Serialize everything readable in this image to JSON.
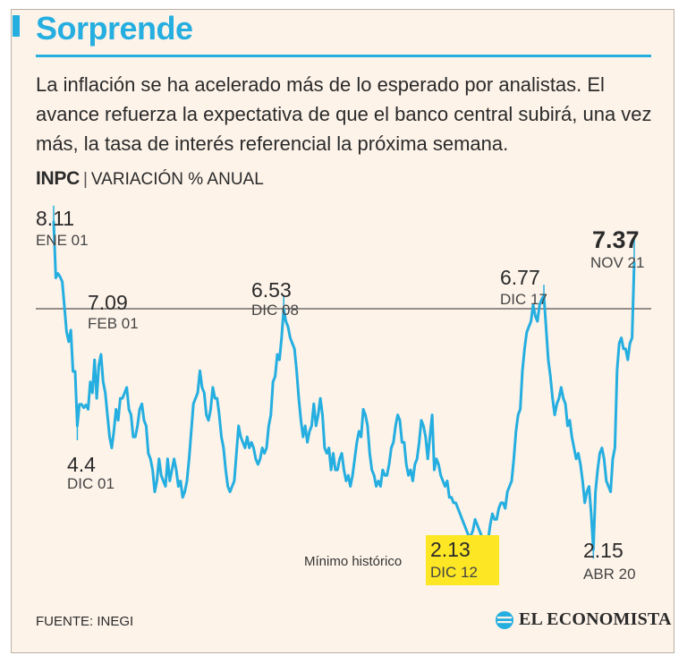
{
  "header": {
    "title": "Sorprende",
    "intro": "La inflación se ha acelerado más de lo esperado por analistas. El avance refuerza la expectativa de que el banco central subirá, una vez más, la tasa de interés referencial la próxima semana.",
    "subtitle_bold": "INPC",
    "subtitle_sep": "|",
    "subtitle_rest": "VARIACIÓN % ANUAL"
  },
  "chart_data": {
    "type": "line",
    "title": "INPC | VARIACIÓN % ANUAL",
    "xlabel": "",
    "ylabel": "",
    "ylim": [
      1.6,
      8.4
    ],
    "grid": false,
    "legend": "none",
    "reference_line": 6.53,
    "series": [
      {
        "name": "INPC variación % anual",
        "values": [
          8.11,
          7.09,
          7.17,
          7.11,
          7.02,
          6.57,
          6.11,
          5.93,
          6.14,
          5.39,
          5.39,
          4.4,
          4.79,
          4.79,
          4.73,
          4.78,
          4.7,
          5.2,
          5.0,
          5.6,
          4.9,
          5.5,
          5.7,
          5.2,
          5.0,
          4.6,
          4.2,
          4.0,
          4.3,
          4.7,
          4.5,
          4.9,
          4.9,
          5.0,
          5.1,
          4.7,
          4.6,
          4.2,
          4.2,
          4.4,
          4.7,
          4.8,
          4.5,
          4.4,
          3.9,
          3.8,
          3.6,
          3.2,
          3.4,
          3.8,
          3.5,
          3.4,
          3.3,
          3.8,
          3.4,
          3.6,
          3.8,
          3.6,
          3.3,
          3.4,
          3.1,
          3.2,
          3.4,
          3.8,
          4.3,
          4.8,
          4.9,
          5.0,
          5.4,
          5.1,
          5.0,
          4.6,
          4.5,
          4.7,
          5.1,
          4.9,
          4.9,
          4.6,
          4.2,
          4.0,
          3.6,
          3.3,
          3.2,
          3.3,
          3.4,
          3.9,
          4.4,
          4.2,
          4.1,
          4.0,
          4.2,
          4.0,
          4.1,
          4.0,
          3.8,
          3.7,
          3.8,
          4.0,
          3.9,
          4.0,
          4.4,
          4.6,
          5.2,
          5.3,
          5.7,
          5.6,
          6.0,
          6.53,
          6.3,
          6.2,
          6.0,
          5.9,
          5.8,
          5.4,
          4.9,
          4.5,
          4.2,
          4.4,
          4.1,
          4.3,
          4.4,
          4.8,
          4.4,
          4.6,
          4.9,
          4.6,
          4.0,
          3.9,
          4.0,
          3.6,
          3.9,
          3.6,
          3.6,
          3.8,
          3.9,
          3.6,
          3.4,
          3.5,
          3.3,
          3.5,
          3.8,
          4.1,
          4.3,
          4.2,
          4.7,
          4.6,
          4.4,
          3.9,
          3.6,
          3.5,
          3.3,
          3.4,
          3.3,
          3.6,
          3.5,
          3.5,
          3.7,
          4.0,
          4.1,
          4.4,
          4.6,
          4.5,
          4.1,
          4.1,
          3.7,
          3.5,
          3.6,
          3.4,
          3.7,
          3.8,
          4.1,
          4.5,
          4.4,
          4.2,
          3.8,
          4.2,
          4.6,
          3.6,
          3.8,
          3.7,
          3.5,
          3.4,
          3.3,
          3.4,
          3.1,
          3.1,
          3.0,
          3.0,
          2.9,
          2.8,
          2.7,
          2.6,
          2.5,
          2.4,
          2.4,
          2.5,
          2.7,
          2.6,
          2.5,
          2.4,
          2.3,
          2.13,
          2.3,
          2.6,
          2.8,
          2.7,
          2.7,
          2.9,
          3.0,
          3.0,
          2.9,
          3.2,
          3.3,
          3.4,
          3.8,
          4.3,
          4.6,
          4.7,
          5.4,
          5.8,
          6.1,
          6.2,
          6.3,
          6.6,
          6.4,
          6.3,
          6.6,
          6.7,
          6.77,
          6.2,
          5.6,
          5.3,
          4.9,
          4.6,
          4.8,
          4.9,
          5.1,
          4.9,
          4.8,
          4.4,
          4.5,
          4.2,
          4.0,
          3.8,
          3.9,
          3.7,
          3.4,
          3.0,
          3.2,
          3.3,
          2.8,
          2.15,
          3.2,
          3.6,
          3.9,
          4.0,
          3.8,
          3.4,
          3.3,
          3.2,
          3.8,
          4.0,
          5.4,
          5.9,
          6.0,
          5.8,
          5.8,
          5.6,
          5.9,
          6.0,
          7.37
        ]
      }
    ],
    "annotations": [
      {
        "value": "8.11",
        "date": "ENE 01"
      },
      {
        "value": "7.09",
        "date": "FEB 01"
      },
      {
        "value": "4.4",
        "date": "DIC 01"
      },
      {
        "value": "6.53",
        "date": "DIC 08"
      },
      {
        "value": "2.13",
        "date": "DIC 12",
        "note": "Mínimo histórico"
      },
      {
        "value": "6.77",
        "date": "DIC 17"
      },
      {
        "value": "2.15",
        "date": "ABR 20"
      },
      {
        "value": "7.37",
        "date": "NOV 21"
      }
    ]
  },
  "footer": {
    "source": "FUENTE: INEGI",
    "brand": "EL ECONOMISTA"
  },
  "colors": {
    "accent": "#25aee0",
    "background": "#fdf3e9",
    "highlight": "#fde725",
    "text": "#2a2a2a"
  }
}
